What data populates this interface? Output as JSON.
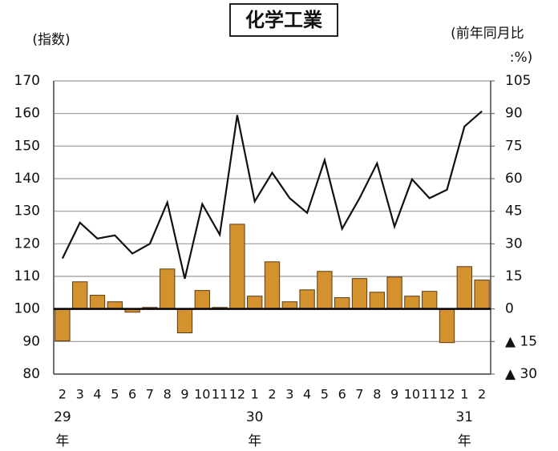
{
  "chart_data": {
    "type": "bar",
    "title": "化学工業",
    "ylabel": "(指数)",
    "y2label": [
      "(前年同月比",
      ":%)"
    ],
    "categories": [
      "2",
      "3",
      "4",
      "5",
      "6",
      "7",
      "8",
      "9",
      "10",
      "11",
      "12",
      "1",
      "2",
      "3",
      "4",
      "5",
      "6",
      "7",
      "8",
      "9",
      "10",
      "11",
      "12",
      "1",
      "2"
    ],
    "years": [
      "29年",
      null,
      null,
      null,
      null,
      null,
      null,
      null,
      null,
      null,
      null,
      "30年",
      null,
      null,
      null,
      null,
      null,
      null,
      null,
      null,
      null,
      null,
      null,
      "31年",
      null
    ],
    "series": [
      {
        "type": "bar",
        "axis": "y2",
        "color": "#d4922f",
        "values": [
          -14.7,
          12.5,
          6.3,
          3.3,
          -1.5,
          0.7,
          18.4,
          -11,
          8.5,
          0.7,
          39,
          5.9,
          21.7,
          3.3,
          8.8,
          17.3,
          5.2,
          14,
          7.7,
          14.7,
          5.9,
          8.1,
          -15.5,
          19.5,
          13.3
        ]
      },
      {
        "type": "line",
        "axis": "y",
        "color": "#111111",
        "values": [
          115.5,
          126.5,
          121.6,
          122.6,
          117,
          120,
          132.7,
          109.3,
          132.2,
          122.8,
          159.5,
          133,
          141.8,
          134,
          129.5,
          145.7,
          124.6,
          134,
          144.7,
          125.3,
          139.8,
          134,
          136.6,
          156,
          160.7
        ]
      }
    ],
    "ylim": [
      80,
      170
    ],
    "yticks": [
      80,
      90,
      100,
      110,
      120,
      130,
      140,
      150,
      160,
      170
    ],
    "y2lim": [
      -30,
      105
    ],
    "y2ticks": [
      {
        "value": -30,
        "label": "▲ 30"
      },
      {
        "value": -15,
        "label": "▲ 15"
      },
      0,
      15,
      30,
      45,
      60,
      75,
      90,
      105
    ],
    "grid": true
  }
}
